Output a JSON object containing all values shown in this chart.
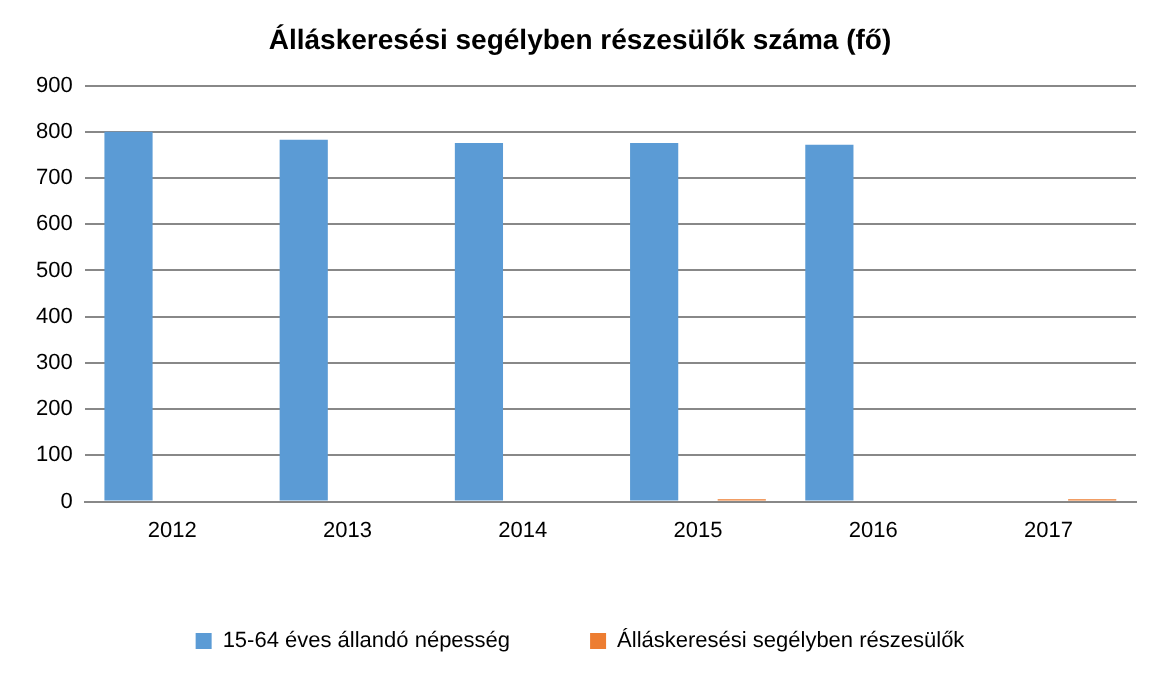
{
  "chart_data": {
    "type": "bar",
    "title": "Álláskeresési segélyben részesülők száma (fő)",
    "categories": [
      "2012",
      "2013",
      "2014",
      "2015",
      "2016",
      "2017"
    ],
    "series": [
      {
        "name": "15-64 éves állandó népesség",
        "color": "#5b9bd5",
        "values": [
          800,
          783,
          776,
          776,
          772,
          null
        ]
      },
      {
        "name": "Álláskeresési segélyben részesülők",
        "color": "#ed7d31",
        "values": [
          0,
          0,
          0,
          5,
          0,
          5
        ]
      }
    ],
    "ylim": [
      0,
      900
    ],
    "yticks": [
      0,
      100,
      200,
      300,
      400,
      500,
      600,
      700,
      800,
      900
    ],
    "grid": "y",
    "legend": "bottom"
  }
}
